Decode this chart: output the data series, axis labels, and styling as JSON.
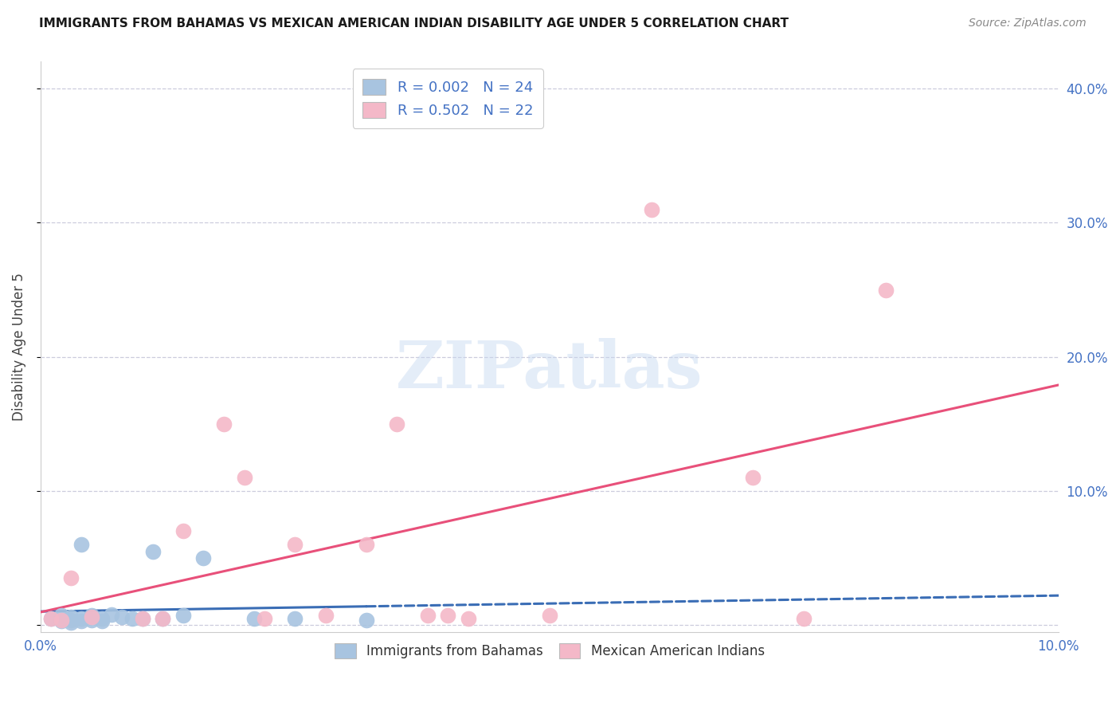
{
  "title": "IMMIGRANTS FROM BAHAMAS VS MEXICAN AMERICAN INDIAN DISABILITY AGE UNDER 5 CORRELATION CHART",
  "source": "Source: ZipAtlas.com",
  "ylabel": "Disability Age Under 5",
  "xlim": [
    0.0,
    0.1
  ],
  "ylim": [
    -0.005,
    0.42
  ],
  "yticks": [
    0.0,
    0.1,
    0.2,
    0.3,
    0.4
  ],
  "ytick_labels_right": [
    "",
    "10.0%",
    "20.0%",
    "30.0%",
    "40.0%"
  ],
  "xticks": [
    0.0,
    0.02,
    0.04,
    0.06,
    0.08,
    0.1
  ],
  "xtick_labels": [
    "0.0%",
    "",
    "",
    "",
    "",
    "10.0%"
  ],
  "series1_label": "Immigrants from Bahamas",
  "series1_R": "0.002",
  "series1_N": "24",
  "series1_color": "#a8c4e0",
  "series1_line_color": "#3a6db5",
  "series2_label": "Mexican American Indians",
  "series2_R": "0.502",
  "series2_N": "22",
  "series2_color": "#f4b8c8",
  "series2_line_color": "#e8507a",
  "background_color": "#ffffff",
  "grid_color": "#ccccdd",
  "watermark_text": "ZIPatlas",
  "series1_x": [
    0.001,
    0.002,
    0.002,
    0.003,
    0.003,
    0.003,
    0.004,
    0.004,
    0.004,
    0.005,
    0.005,
    0.006,
    0.006,
    0.007,
    0.008,
    0.009,
    0.01,
    0.011,
    0.012,
    0.014,
    0.016,
    0.021,
    0.025,
    0.032
  ],
  "series1_y": [
    0.005,
    0.003,
    0.007,
    0.002,
    0.004,
    0.006,
    0.003,
    0.005,
    0.06,
    0.004,
    0.007,
    0.005,
    0.003,
    0.008,
    0.006,
    0.005,
    0.005,
    0.055,
    0.005,
    0.007,
    0.05,
    0.005,
    0.005,
    0.004
  ],
  "series2_x": [
    0.001,
    0.002,
    0.003,
    0.005,
    0.01,
    0.012,
    0.014,
    0.018,
    0.02,
    0.022,
    0.025,
    0.028,
    0.032,
    0.035,
    0.038,
    0.04,
    0.042,
    0.05,
    0.06,
    0.07,
    0.075,
    0.083
  ],
  "series2_y": [
    0.005,
    0.004,
    0.035,
    0.006,
    0.005,
    0.005,
    0.07,
    0.15,
    0.11,
    0.005,
    0.06,
    0.007,
    0.06,
    0.15,
    0.007,
    0.007,
    0.005,
    0.007,
    0.31,
    0.11,
    0.005,
    0.25
  ],
  "axis_label_color": "#4472c4",
  "title_color": "#1a1a1a",
  "source_color": "#888888",
  "legend_text_color": "#4472c4",
  "ylabel_color": "#444444"
}
